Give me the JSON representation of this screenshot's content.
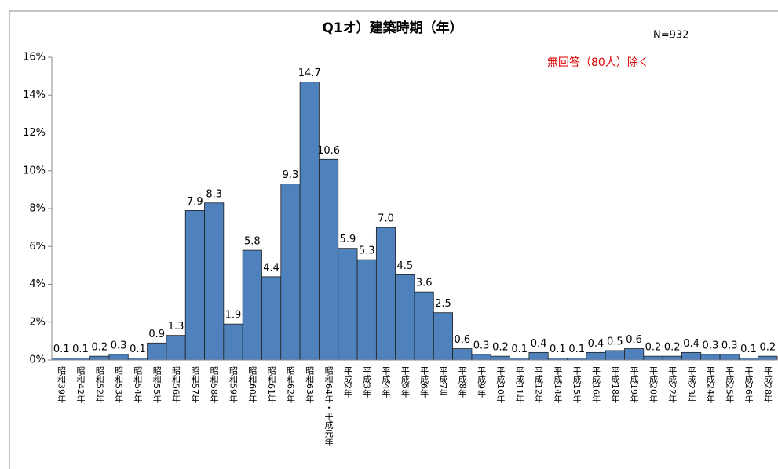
{
  "chart_data": {
    "type": "bar",
    "title": "Q1オ）建築時期（年）",
    "annotations": [
      "N=932",
      "無回答（80人）除く"
    ],
    "categories": [
      "昭和39年",
      "昭和42年",
      "昭和52年",
      "昭和53年",
      "昭和54年",
      "昭和55年",
      "昭和56年",
      "昭和57年",
      "昭和58年",
      "昭和59年",
      "昭和60年",
      "昭和61年",
      "昭和62年",
      "昭和63年",
      "昭和64年・平成元年",
      "平成2年",
      "平成3年",
      "平成4年",
      "平成5年",
      "平成6年",
      "平成7年",
      "平成8年",
      "平成9年",
      "平成10年",
      "平成11年",
      "平成12年",
      "平成14年",
      "平成15年",
      "平成16年",
      "平成18年",
      "平成19年",
      "平成20年",
      "平成22年",
      "平成23年",
      "平成24年",
      "平成25年",
      "平成26年",
      "平成28年"
    ],
    "values": [
      0.1,
      0.1,
      0.2,
      0.3,
      0.1,
      0.9,
      1.3,
      7.9,
      8.3,
      1.9,
      5.8,
      4.4,
      9.3,
      14.7,
      10.6,
      5.9,
      5.3,
      7.0,
      4.5,
      3.6,
      2.5,
      0.6,
      0.3,
      0.2,
      0.1,
      0.4,
      0.1,
      0.1,
      0.4,
      0.5,
      0.6,
      0.2,
      0.2,
      0.4,
      0.3,
      0.3,
      0.1,
      0.2
    ],
    "value_labels": [
      "0.1",
      "0.1",
      "0.2",
      "0.3",
      "0.1",
      "0.9",
      "1.3",
      "7.9",
      "8.3",
      "1.9",
      "5.8",
      "4.4",
      "9.3",
      "14.7",
      "10.6",
      "5.9",
      "5.3",
      "7.0",
      "4.5",
      "3.6",
      "2.5",
      "0.6",
      "0.3",
      "0.2",
      "0.1",
      "0.4",
      "0.1",
      "0.1",
      "0.4",
      "0.5",
      "0.6",
      "0.2",
      "0.2",
      "0.4",
      "0.3",
      "0.3",
      "0.1",
      "0.2"
    ],
    "color": "#4f81bd",
    "ylim": [
      0,
      16
    ],
    "yticks": [
      {
        "value": 0,
        "label": "0%"
      },
      {
        "value": 2,
        "label": "2%"
      },
      {
        "value": 4,
        "label": "4%"
      },
      {
        "value": 6,
        "label": "6%"
      },
      {
        "value": 8,
        "label": "8%"
      },
      {
        "value": 10,
        "label": "10%"
      },
      {
        "value": 12,
        "label": "12%"
      },
      {
        "value": 14,
        "label": "14%"
      },
      {
        "value": 16,
        "label": "16%"
      }
    ],
    "grid": false
  }
}
